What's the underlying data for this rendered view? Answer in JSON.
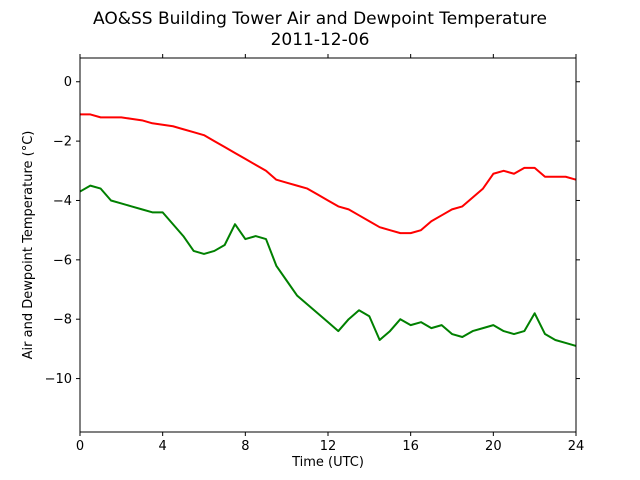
{
  "chart_data": {
    "type": "line",
    "title": "AO&SS Building Tower Air and Dewpoint Temperature",
    "subtitle": "2011-12-06",
    "xlabel": "Time (UTC)",
    "ylabel": "Air and Dewpoint Temperature (°C)",
    "xlim": [
      0,
      24
    ],
    "ylim": [
      -11.8,
      0.8
    ],
    "xticks": [
      0,
      4,
      8,
      12,
      16,
      20,
      24
    ],
    "yticks": [
      0,
      -2,
      -4,
      -6,
      -8,
      -10
    ],
    "xtick_labels": [
      "0",
      "4",
      "8",
      "12",
      "16",
      "20",
      "24"
    ],
    "ytick_labels": [
      "0",
      "−2",
      "−4",
      "−6",
      "−8",
      "−10"
    ],
    "grid": false,
    "series": [
      {
        "color": "#ff0000",
        "x": [
          0,
          0.5,
          1,
          1.5,
          2,
          2.5,
          3,
          3.5,
          4,
          4.5,
          5,
          5.5,
          6,
          6.5,
          7,
          7.5,
          8,
          8.5,
          9,
          9.5,
          10,
          10.5,
          11,
          11.5,
          12,
          12.5,
          13,
          13.5,
          14,
          14.5,
          15,
          15.5,
          16,
          16.5,
          17,
          17.5,
          18,
          18.5,
          19,
          19.5,
          20,
          20.5,
          21,
          21.5,
          22,
          22.5,
          23,
          23.5,
          24
        ],
        "y": [
          -1.1,
          -1.1,
          -1.2,
          -1.2,
          -1.2,
          -1.25,
          -1.3,
          -1.4,
          -1.45,
          -1.5,
          -1.6,
          -1.7,
          -1.8,
          -2.0,
          -2.2,
          -2.4,
          -2.6,
          -2.8,
          -3.0,
          -3.3,
          -3.4,
          -3.5,
          -3.6,
          -3.8,
          -4.0,
          -4.2,
          -4.3,
          -4.5,
          -4.7,
          -4.9,
          -5.0,
          -5.1,
          -5.1,
          -5.0,
          -4.7,
          -4.5,
          -4.3,
          -4.2,
          -3.9,
          -3.6,
          -3.1,
          -3.0,
          -3.1,
          -2.9,
          -2.9,
          -3.2,
          -3.2,
          -3.2,
          -3.3
        ]
      },
      {
        "color": "#008000",
        "x": [
          0,
          0.5,
          1,
          1.5,
          2,
          2.5,
          3,
          3.5,
          4,
          4.5,
          5,
          5.5,
          6,
          6.5,
          7,
          7.5,
          8,
          8.5,
          9,
          9.5,
          10,
          10.5,
          11,
          11.5,
          12,
          12.5,
          13,
          13.5,
          14,
          14.5,
          15,
          15.5,
          16,
          16.5,
          17,
          17.5,
          18,
          18.5,
          19,
          19.5,
          20,
          20.5,
          21,
          21.5,
          22,
          22.5,
          23,
          23.5,
          24
        ],
        "y": [
          -3.7,
          -3.5,
          -3.6,
          -4.0,
          -4.1,
          -4.2,
          -4.3,
          -4.4,
          -4.4,
          -4.8,
          -5.2,
          -5.7,
          -5.8,
          -5.7,
          -5.5,
          -4.8,
          -5.3,
          -5.2,
          -5.3,
          -6.2,
          -6.7,
          -7.2,
          -7.5,
          -7.8,
          -8.1,
          -8.4,
          -8.0,
          -7.7,
          -7.9,
          -8.7,
          -8.4,
          -8.0,
          -8.2,
          -8.1,
          -8.3,
          -8.2,
          -8.5,
          -8.6,
          -8.4,
          -8.3,
          -8.2,
          -8.4,
          -8.5,
          -8.4,
          -7.8,
          -8.5,
          -8.7,
          -8.8,
          -8.9
        ]
      }
    ]
  }
}
